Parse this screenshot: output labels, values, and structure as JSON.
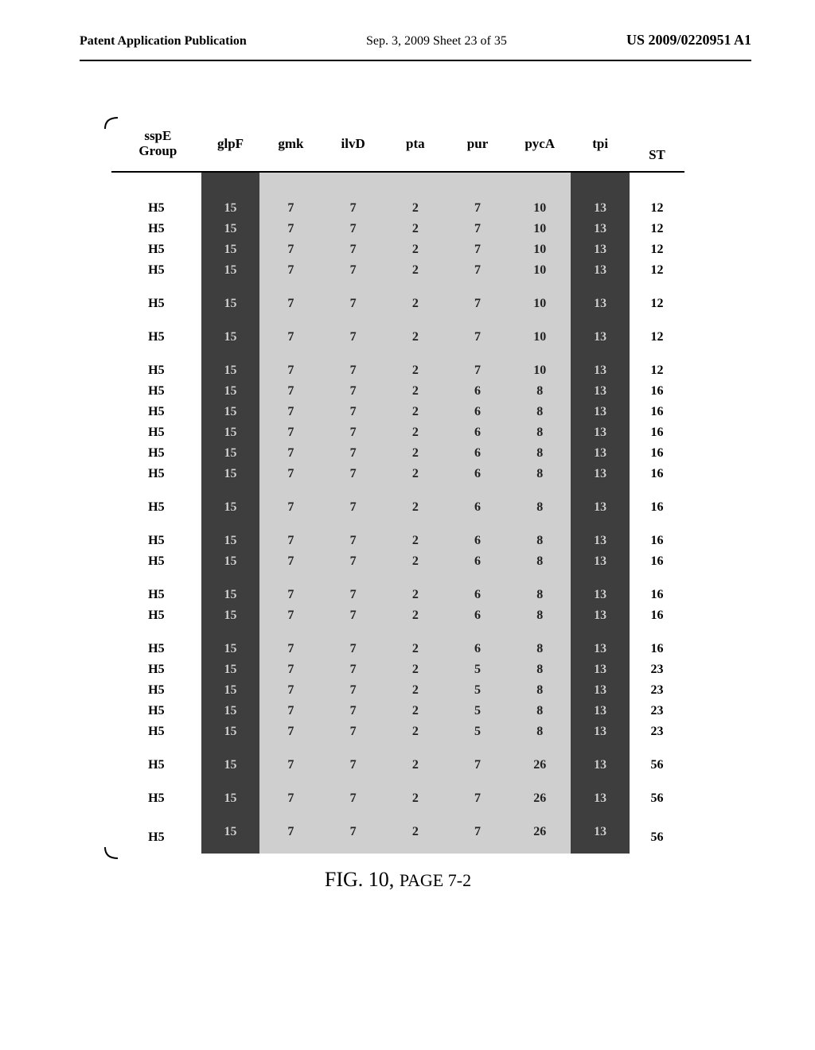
{
  "header": {
    "left": "Patent Application Publication",
    "center": "Sep. 3, 2009  Sheet 23 of 35",
    "right": "US 2009/0220951 A1"
  },
  "columns": [
    "sspE Group",
    "glpF",
    "gmk",
    "ilvD",
    "pta",
    "pur",
    "pycA",
    "tpi",
    "ST"
  ],
  "col_shade": [
    "left",
    "dark",
    "light",
    "light",
    "light",
    "light",
    "light",
    "dark",
    "st"
  ],
  "rows": [
    {
      "gap_before": true,
      "c": [
        "H5",
        "15",
        "7",
        "7",
        "2",
        "7",
        "10",
        "13",
        "12"
      ]
    },
    {
      "c": [
        "H5",
        "15",
        "7",
        "7",
        "2",
        "7",
        "10",
        "13",
        "12"
      ]
    },
    {
      "c": [
        "H5",
        "15",
        "7",
        "7",
        "2",
        "7",
        "10",
        "13",
        "12"
      ]
    },
    {
      "c": [
        "H5",
        "15",
        "7",
        "7",
        "2",
        "7",
        "10",
        "13",
        "12"
      ]
    },
    {
      "gap_before": true,
      "c": [
        "H5",
        "15",
        "7",
        "7",
        "2",
        "7",
        "10",
        "13",
        "12"
      ]
    },
    {
      "gap_before": true,
      "c": [
        "H5",
        "15",
        "7",
        "7",
        "2",
        "7",
        "10",
        "13",
        "12"
      ]
    },
    {
      "gap_before": true,
      "c": [
        "H5",
        "15",
        "7",
        "7",
        "2",
        "7",
        "10",
        "13",
        "12"
      ]
    },
    {
      "c": [
        "H5",
        "15",
        "7",
        "7",
        "2",
        "6",
        "8",
        "13",
        "16"
      ]
    },
    {
      "c": [
        "H5",
        "15",
        "7",
        "7",
        "2",
        "6",
        "8",
        "13",
        "16"
      ]
    },
    {
      "c": [
        "H5",
        "15",
        "7",
        "7",
        "2",
        "6",
        "8",
        "13",
        "16"
      ]
    },
    {
      "c": [
        "H5",
        "15",
        "7",
        "7",
        "2",
        "6",
        "8",
        "13",
        "16"
      ]
    },
    {
      "c": [
        "H5",
        "15",
        "7",
        "7",
        "2",
        "6",
        "8",
        "13",
        "16"
      ]
    },
    {
      "gap_before": true,
      "c": [
        "H5",
        "15",
        "7",
        "7",
        "2",
        "6",
        "8",
        "13",
        "16"
      ]
    },
    {
      "gap_before": true,
      "c": [
        "H5",
        "15",
        "7",
        "7",
        "2",
        "6",
        "8",
        "13",
        "16"
      ]
    },
    {
      "c": [
        "H5",
        "15",
        "7",
        "7",
        "2",
        "6",
        "8",
        "13",
        "16"
      ]
    },
    {
      "gap_before": true,
      "c": [
        "H5",
        "15",
        "7",
        "7",
        "2",
        "6",
        "8",
        "13",
        "16"
      ]
    },
    {
      "c": [
        "H5",
        "15",
        "7",
        "7",
        "2",
        "6",
        "8",
        "13",
        "16"
      ]
    },
    {
      "gap_before": true,
      "c": [
        "H5",
        "15",
        "7",
        "7",
        "2",
        "6",
        "8",
        "13",
        "16"
      ]
    },
    {
      "c": [
        "H5",
        "15",
        "7",
        "7",
        "2",
        "5",
        "8",
        "13",
        "23"
      ]
    },
    {
      "c": [
        "H5",
        "15",
        "7",
        "7",
        "2",
        "5",
        "8",
        "13",
        "23"
      ]
    },
    {
      "c": [
        "H5",
        "15",
        "7",
        "7",
        "2",
        "5",
        "8",
        "13",
        "23"
      ]
    },
    {
      "c": [
        "H5",
        "15",
        "7",
        "7",
        "2",
        "5",
        "8",
        "13",
        "23"
      ]
    },
    {
      "gap_before": true,
      "c": [
        "H5",
        "15",
        "7",
        "7",
        "2",
        "7",
        "26",
        "13",
        "56"
      ]
    },
    {
      "gap_before": true,
      "c": [
        "H5",
        "15",
        "7",
        "7",
        "2",
        "7",
        "26",
        "13",
        "56"
      ]
    },
    {
      "gap_before": true,
      "bottom": true,
      "c": [
        "H5",
        "15",
        "7",
        "7",
        "2",
        "7",
        "26",
        "13",
        "56"
      ]
    }
  ],
  "caption_main": "FIG. 10, ",
  "caption_sub": "PAGE 7-2"
}
